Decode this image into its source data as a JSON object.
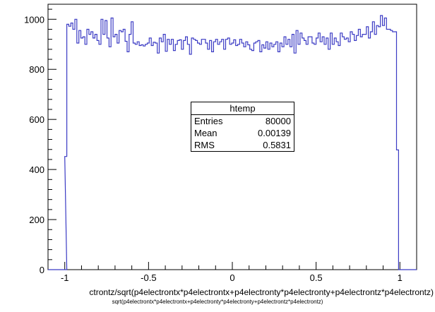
{
  "chart_data": {
    "type": "histogram",
    "title": "",
    "xlabel": "ctrontz/sqrt(p4electrontx*p4electrontx+p4electronty*p4electronty+p4electrontz*p4electrontz)",
    "ylabel": "",
    "xlim": [
      -1.1,
      1.1
    ],
    "ylim": [
      0,
      1060
    ],
    "x_ticks": [
      {
        "value": -1,
        "label": "-1"
      },
      {
        "value": -0.5,
        "label": "-0.5"
      },
      {
        "value": 0,
        "label": "0"
      },
      {
        "value": 0.5,
        "label": "0.5"
      },
      {
        "value": 1,
        "label": "1"
      }
    ],
    "y_ticks": [
      {
        "value": 0,
        "label": "0"
      },
      {
        "value": 200,
        "label": "200"
      },
      {
        "value": 400,
        "label": "400"
      },
      {
        "value": 600,
        "label": "600"
      },
      {
        "value": 800,
        "label": "800"
      },
      {
        "value": 1000,
        "label": "1000"
      }
    ],
    "line_color": "#3b3bc4",
    "bin_width": 0.0224,
    "bins": [
      {
        "x": -1.1,
        "y": 0
      },
      {
        "x": -1.0776,
        "y": 0
      },
      {
        "x": -1.0552,
        "y": 0
      },
      {
        "x": -1.0328,
        "y": 0
      },
      {
        "x": -1.0104,
        "y": 0
      },
      {
        "x": -1.0,
        "y": 452
      },
      {
        "x": -0.988,
        "y": 980
      },
      {
        "x": -0.976,
        "y": 972
      },
      {
        "x": -0.964,
        "y": 985
      },
      {
        "x": -0.952,
        "y": 960
      },
      {
        "x": -0.94,
        "y": 1000
      },
      {
        "x": -0.928,
        "y": 905
      },
      {
        "x": -0.916,
        "y": 955
      },
      {
        "x": -0.904,
        "y": 925
      },
      {
        "x": -0.892,
        "y": 930
      },
      {
        "x": -0.88,
        "y": 900
      },
      {
        "x": -0.868,
        "y": 960
      },
      {
        "x": -0.856,
        "y": 940
      },
      {
        "x": -0.844,
        "y": 950
      },
      {
        "x": -0.832,
        "y": 925
      },
      {
        "x": -0.82,
        "y": 940
      },
      {
        "x": -0.808,
        "y": 915
      },
      {
        "x": -0.796,
        "y": 900
      },
      {
        "x": -0.784,
        "y": 1000
      },
      {
        "x": -0.772,
        "y": 940
      },
      {
        "x": -0.76,
        "y": 995
      },
      {
        "x": -0.748,
        "y": 925
      },
      {
        "x": -0.736,
        "y": 890
      },
      {
        "x": -0.724,
        "y": 1005
      },
      {
        "x": -0.712,
        "y": 930
      },
      {
        "x": -0.7,
        "y": 940
      },
      {
        "x": -0.688,
        "y": 905
      },
      {
        "x": -0.676,
        "y": 955
      },
      {
        "x": -0.664,
        "y": 950
      },
      {
        "x": -0.652,
        "y": 960
      },
      {
        "x": -0.64,
        "y": 912
      },
      {
        "x": -0.628,
        "y": 870
      },
      {
        "x": -0.616,
        "y": 940
      },
      {
        "x": -0.604,
        "y": 990
      },
      {
        "x": -0.592,
        "y": 905
      },
      {
        "x": -0.58,
        "y": 900
      },
      {
        "x": -0.568,
        "y": 910
      },
      {
        "x": -0.556,
        "y": 895
      },
      {
        "x": -0.544,
        "y": 898
      },
      {
        "x": -0.532,
        "y": 893
      },
      {
        "x": -0.52,
        "y": 900
      },
      {
        "x": -0.508,
        "y": 905
      },
      {
        "x": -0.496,
        "y": 925
      },
      {
        "x": -0.484,
        "y": 895
      },
      {
        "x": -0.472,
        "y": 908
      },
      {
        "x": -0.46,
        "y": 905
      },
      {
        "x": -0.448,
        "y": 865
      },
      {
        "x": -0.436,
        "y": 925
      },
      {
        "x": -0.424,
        "y": 910
      },
      {
        "x": -0.412,
        "y": 940
      },
      {
        "x": -0.4,
        "y": 872
      },
      {
        "x": -0.388,
        "y": 920
      },
      {
        "x": -0.376,
        "y": 900
      },
      {
        "x": -0.364,
        "y": 920
      },
      {
        "x": -0.352,
        "y": 875
      },
      {
        "x": -0.34,
        "y": 900
      },
      {
        "x": -0.328,
        "y": 915
      },
      {
        "x": -0.316,
        "y": 918
      },
      {
        "x": -0.304,
        "y": 880
      },
      {
        "x": -0.292,
        "y": 915
      },
      {
        "x": -0.28,
        "y": 930
      },
      {
        "x": -0.268,
        "y": 900
      },
      {
        "x": -0.256,
        "y": 860
      },
      {
        "x": -0.244,
        "y": 925
      },
      {
        "x": -0.232,
        "y": 920
      },
      {
        "x": -0.22,
        "y": 915
      },
      {
        "x": -0.208,
        "y": 905
      },
      {
        "x": -0.196,
        "y": 900
      },
      {
        "x": -0.184,
        "y": 920
      },
      {
        "x": -0.172,
        "y": 920
      },
      {
        "x": -0.16,
        "y": 905
      },
      {
        "x": -0.148,
        "y": 880
      },
      {
        "x": -0.136,
        "y": 915
      },
      {
        "x": -0.124,
        "y": 870
      },
      {
        "x": -0.112,
        "y": 910
      },
      {
        "x": -0.1,
        "y": 920
      },
      {
        "x": -0.088,
        "y": 900
      },
      {
        "x": -0.076,
        "y": 910
      },
      {
        "x": -0.064,
        "y": 920
      },
      {
        "x": -0.052,
        "y": 880
      },
      {
        "x": -0.04,
        "y": 920
      },
      {
        "x": -0.028,
        "y": 925
      },
      {
        "x": -0.016,
        "y": 900
      },
      {
        "x": -0.004,
        "y": 905
      },
      {
        "x": 0.008,
        "y": 918
      },
      {
        "x": 0.02,
        "y": 895
      },
      {
        "x": 0.032,
        "y": 900
      },
      {
        "x": 0.044,
        "y": 920
      },
      {
        "x": 0.056,
        "y": 905
      },
      {
        "x": 0.068,
        "y": 890
      },
      {
        "x": 0.08,
        "y": 910
      },
      {
        "x": 0.092,
        "y": 898
      },
      {
        "x": 0.104,
        "y": 880
      },
      {
        "x": 0.116,
        "y": 875
      },
      {
        "x": 0.128,
        "y": 905
      },
      {
        "x": 0.14,
        "y": 910
      },
      {
        "x": 0.152,
        "y": 915
      },
      {
        "x": 0.164,
        "y": 870
      },
      {
        "x": 0.176,
        "y": 898
      },
      {
        "x": 0.188,
        "y": 885
      },
      {
        "x": 0.2,
        "y": 910
      },
      {
        "x": 0.212,
        "y": 880
      },
      {
        "x": 0.224,
        "y": 905
      },
      {
        "x": 0.236,
        "y": 890
      },
      {
        "x": 0.248,
        "y": 900
      },
      {
        "x": 0.26,
        "y": 910
      },
      {
        "x": 0.272,
        "y": 870
      },
      {
        "x": 0.284,
        "y": 905
      },
      {
        "x": 0.296,
        "y": 890
      },
      {
        "x": 0.308,
        "y": 930
      },
      {
        "x": 0.32,
        "y": 900
      },
      {
        "x": 0.332,
        "y": 920
      },
      {
        "x": 0.344,
        "y": 890
      },
      {
        "x": 0.356,
        "y": 940
      },
      {
        "x": 0.368,
        "y": 865
      },
      {
        "x": 0.38,
        "y": 955
      },
      {
        "x": 0.392,
        "y": 900
      },
      {
        "x": 0.404,
        "y": 945
      },
      {
        "x": 0.416,
        "y": 925
      },
      {
        "x": 0.428,
        "y": 915
      },
      {
        "x": 0.44,
        "y": 900
      },
      {
        "x": 0.452,
        "y": 930
      },
      {
        "x": 0.464,
        "y": 930
      },
      {
        "x": 0.476,
        "y": 905
      },
      {
        "x": 0.488,
        "y": 900
      },
      {
        "x": 0.5,
        "y": 925
      },
      {
        "x": 0.512,
        "y": 945
      },
      {
        "x": 0.524,
        "y": 910
      },
      {
        "x": 0.536,
        "y": 930
      },
      {
        "x": 0.548,
        "y": 900
      },
      {
        "x": 0.56,
        "y": 925
      },
      {
        "x": 0.572,
        "y": 880
      },
      {
        "x": 0.584,
        "y": 945
      },
      {
        "x": 0.596,
        "y": 900
      },
      {
        "x": 0.608,
        "y": 925
      },
      {
        "x": 0.62,
        "y": 910
      },
      {
        "x": 0.632,
        "y": 895
      },
      {
        "x": 0.644,
        "y": 945
      },
      {
        "x": 0.656,
        "y": 930
      },
      {
        "x": 0.668,
        "y": 920
      },
      {
        "x": 0.68,
        "y": 925
      },
      {
        "x": 0.692,
        "y": 910
      },
      {
        "x": 0.704,
        "y": 950
      },
      {
        "x": 0.716,
        "y": 940
      },
      {
        "x": 0.728,
        "y": 915
      },
      {
        "x": 0.74,
        "y": 935
      },
      {
        "x": 0.752,
        "y": 960
      },
      {
        "x": 0.764,
        "y": 930
      },
      {
        "x": 0.776,
        "y": 940
      },
      {
        "x": 0.788,
        "y": 940
      },
      {
        "x": 0.8,
        "y": 970
      },
      {
        "x": 0.812,
        "y": 925
      },
      {
        "x": 0.824,
        "y": 950
      },
      {
        "x": 0.836,
        "y": 990
      },
      {
        "x": 0.848,
        "y": 940
      },
      {
        "x": 0.86,
        "y": 975
      },
      {
        "x": 0.872,
        "y": 970
      },
      {
        "x": 0.884,
        "y": 1015
      },
      {
        "x": 0.896,
        "y": 975
      },
      {
        "x": 0.908,
        "y": 1005
      },
      {
        "x": 0.92,
        "y": 960
      },
      {
        "x": 0.932,
        "y": 960
      },
      {
        "x": 0.944,
        "y": 955
      },
      {
        "x": 0.956,
        "y": 950
      },
      {
        "x": 0.968,
        "y": 950
      },
      {
        "x": 0.98,
        "y": 478
      },
      {
        "x": 0.992,
        "y": 0
      },
      {
        "x": 1.004,
        "y": 0
      },
      {
        "x": 1.016,
        "y": 0
      },
      {
        "x": 1.028,
        "y": 0
      }
    ]
  },
  "stats_box": {
    "title": "htemp",
    "rows": [
      {
        "label": "Entries",
        "value": "80000"
      },
      {
        "label": "Mean",
        "value": "0.00139"
      },
      {
        "label": "RMS",
        "value": "0.5831"
      }
    ]
  },
  "caption": "sqrt(p4electrontx*p4electrontx+p4electronty*p4electronty+p4electrontz*p4electrontz)"
}
